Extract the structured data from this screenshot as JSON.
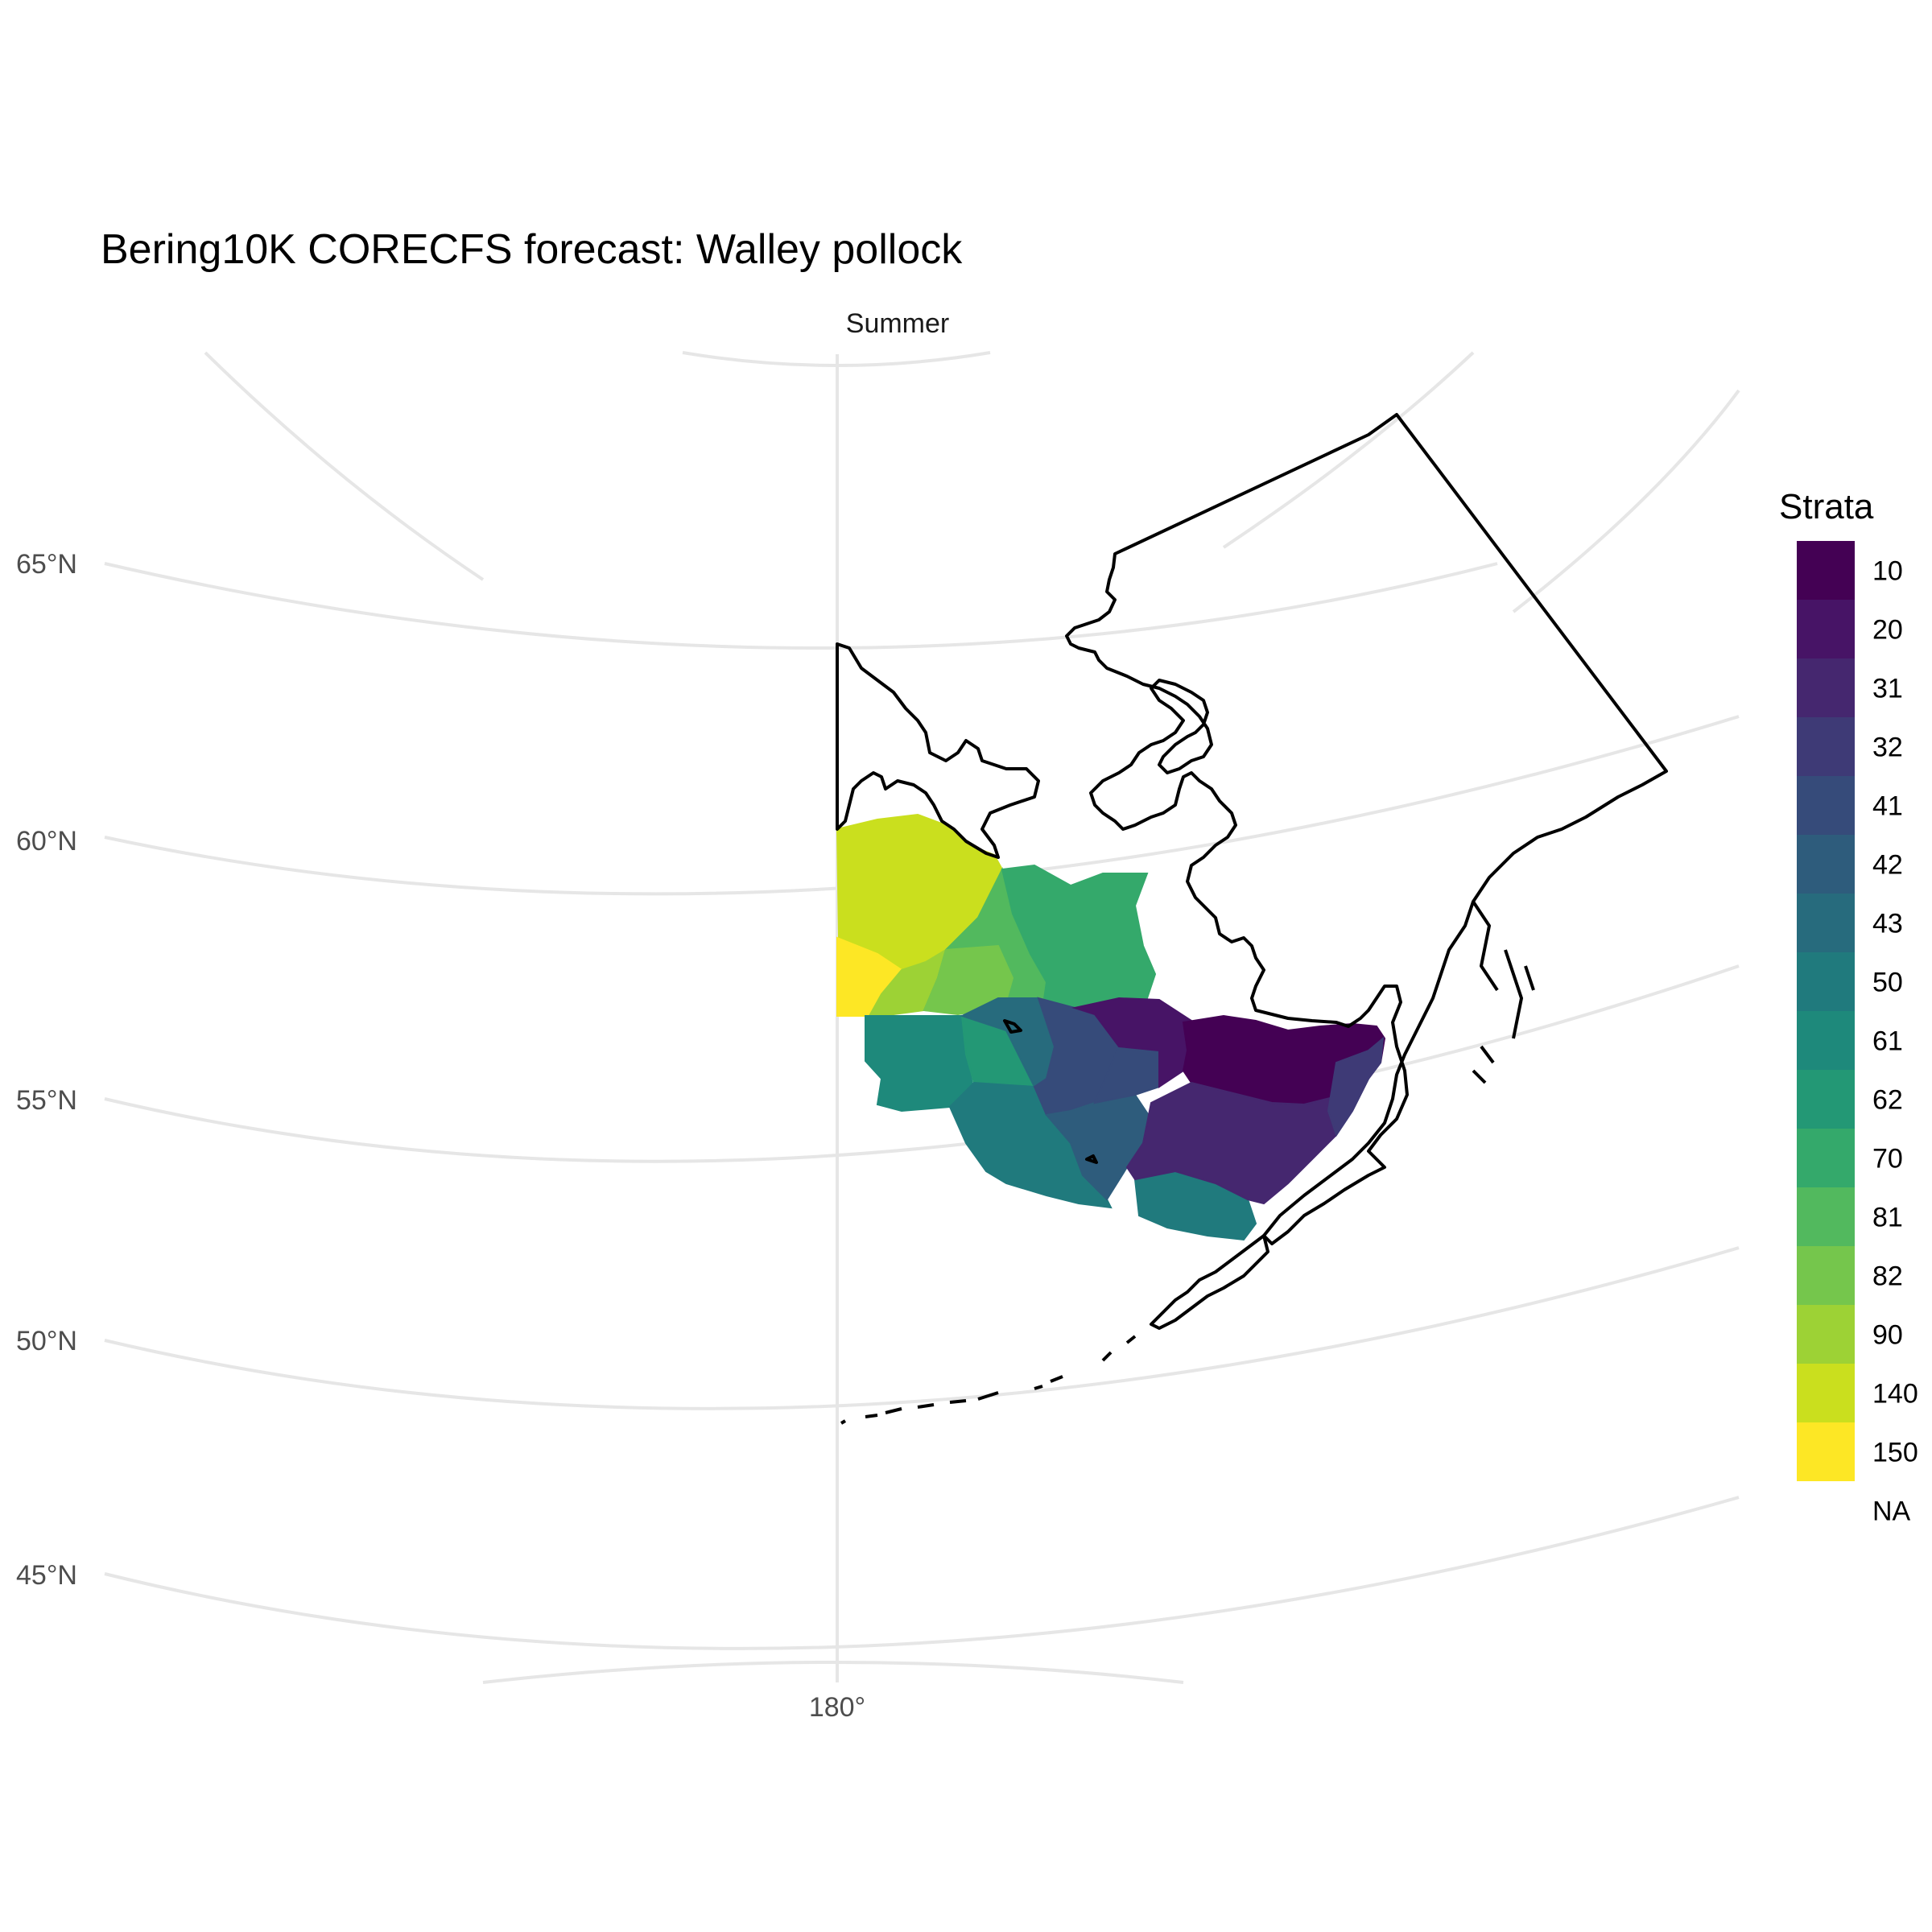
{
  "title": "Bering10K CORECFS forecast: Walley pollock",
  "facet": "Summer",
  "axes": {
    "lat_labels": [
      "65°N",
      "60°N",
      "55°N",
      "50°N",
      "45°N"
    ],
    "lon_labels": [
      "180°"
    ]
  },
  "legend": {
    "title": "Strata",
    "items": [
      {
        "label": "10",
        "color": "#440154"
      },
      {
        "label": "20",
        "color": "#471466"
      },
      {
        "label": "31",
        "color": "#45276f"
      },
      {
        "label": "32",
        "color": "#3e3a76"
      },
      {
        "label": "41",
        "color": "#364b7a"
      },
      {
        "label": "42",
        "color": "#2e5c7c"
      },
      {
        "label": "43",
        "color": "#276b7d"
      },
      {
        "label": "50",
        "color": "#207a7d"
      },
      {
        "label": "61",
        "color": "#1e897b"
      },
      {
        "label": "62",
        "color": "#239875"
      },
      {
        "label": "70",
        "color": "#34a96b"
      },
      {
        "label": "81",
        "color": "#52b95e"
      },
      {
        "label": "82",
        "color": "#75c64c"
      },
      {
        "label": "90",
        "color": "#9dd235"
      },
      {
        "label": "140",
        "color": "#cadf1e"
      },
      {
        "label": "150",
        "color": "#fde725"
      },
      {
        "label": "NA",
        "color": "#ffffff"
      }
    ]
  }
}
